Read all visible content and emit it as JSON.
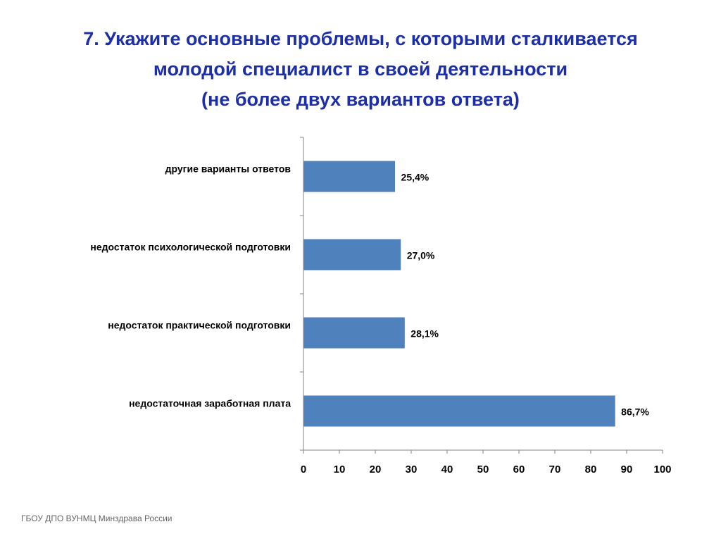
{
  "title": {
    "line1": "7. Укажите основные проблемы, с которыми сталкивается",
    "line2": "молодой специалист в своей деятельности",
    "line3": "(не более двух вариантов ответа)"
  },
  "footer": "ГБОУ ДПО ВУНМЦ Минздрава России",
  "colors": {
    "bar": "#4f81bd",
    "title": "#1c2fa8",
    "axis": "#868686"
  },
  "chart_data": {
    "type": "bar",
    "orientation": "horizontal",
    "categories": [
      "другие варианты ответов",
      "недостаток психологической подготовки",
      "недостаток практической подготовки",
      "недостаточная заработная плата"
    ],
    "values": [
      25.4,
      27.0,
      28.1,
      86.7
    ],
    "data_labels": [
      "25,4%",
      "27,0%",
      "28,1%",
      "86,7%"
    ],
    "xlim": [
      0,
      100
    ],
    "xticks": [
      0,
      10,
      20,
      30,
      40,
      50,
      60,
      70,
      80,
      90,
      100
    ],
    "grid": false,
    "legend": false
  }
}
